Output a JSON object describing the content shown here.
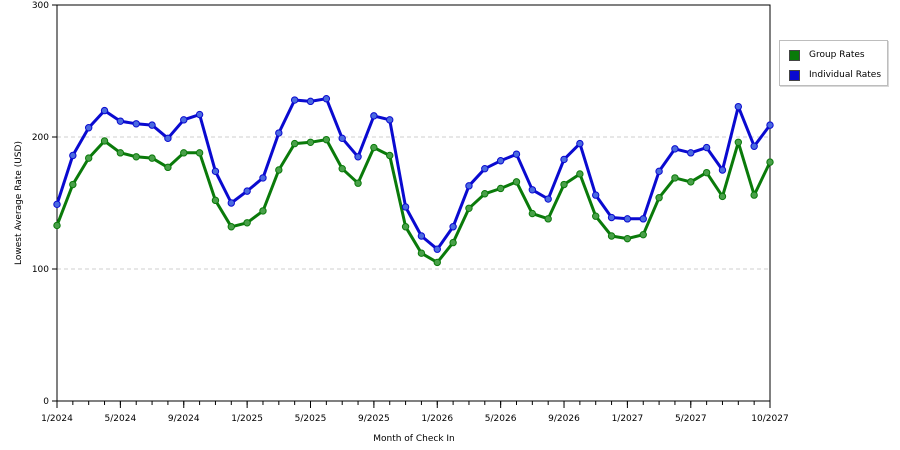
{
  "chart_data": {
    "type": "line",
    "xlabel": "Month of Check In",
    "ylabel": "Lowest Average Rate (USD)",
    "ylim": [
      0,
      300
    ],
    "y_ticks": [
      "0",
      "100",
      "200",
      "300"
    ],
    "x_tick_labels": [
      "1/2024",
      "5/2024",
      "9/2024",
      "1/2025",
      "5/2025",
      "9/2025",
      "1/2026",
      "5/2026",
      "9/2026",
      "1/2027",
      "5/2027",
      "10/2027"
    ],
    "x_tick_index": [
      0,
      4,
      8,
      12,
      16,
      20,
      24,
      28,
      32,
      36,
      40,
      45
    ],
    "grid": "horizontal dashed",
    "legend_position": "right",
    "series": [
      {
        "name": "Group Rates",
        "color": "#0a7a0a",
        "marker": "#49a049",
        "values": [
          133,
          164,
          184,
          197,
          188,
          185,
          184,
          177,
          188,
          188,
          152,
          132,
          135,
          144,
          175,
          195,
          196,
          198,
          176,
          165,
          192,
          186,
          132,
          112,
          105,
          120,
          146,
          157,
          161,
          166,
          142,
          138,
          164,
          172,
          140,
          125,
          123,
          126,
          154,
          169,
          166,
          173,
          155,
          196,
          156,
          181
        ]
      },
      {
        "name": "Individual Rates",
        "color": "#0a0ad0",
        "marker": "#4a6ae0",
        "values": [
          149,
          186,
          207,
          220,
          212,
          210,
          209,
          199,
          213,
          217,
          174,
          150,
          159,
          169,
          203,
          228,
          227,
          229,
          199,
          185,
          216,
          213,
          147,
          125,
          115,
          132,
          163,
          176,
          182,
          187,
          160,
          153,
          183,
          195,
          156,
          139,
          138,
          138,
          174,
          191,
          188,
          192,
          175,
          223,
          193,
          209
        ]
      }
    ]
  }
}
